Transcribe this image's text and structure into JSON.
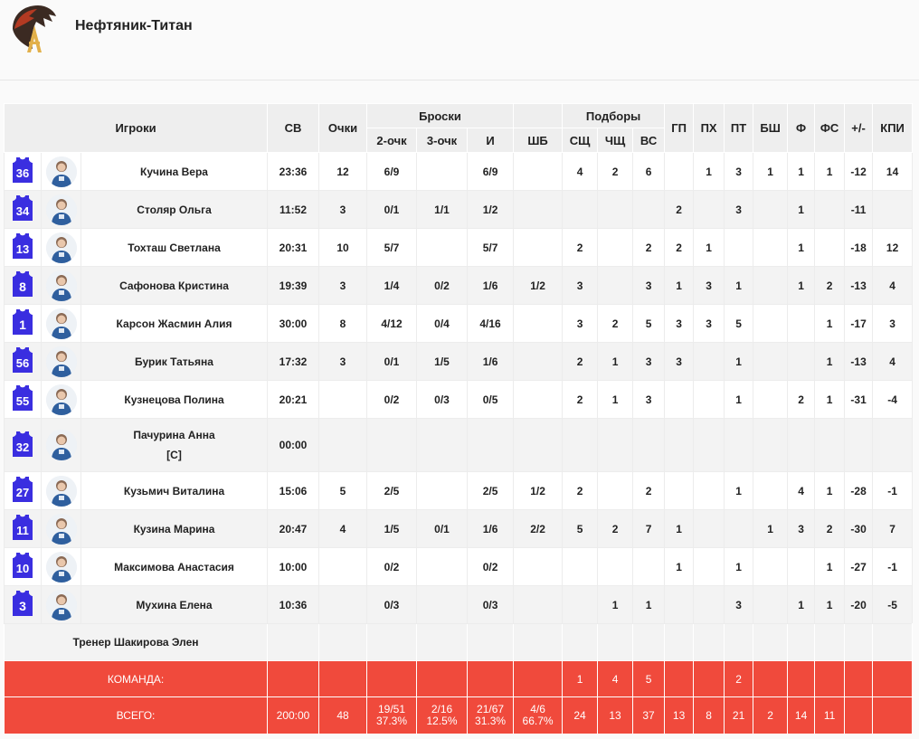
{
  "team": {
    "name": "Нефтяник-Титан"
  },
  "columns": {
    "players": "Игроки",
    "minutes": "СВ",
    "points": "Очки",
    "shots": "Броски",
    "two": "2-очк",
    "three": "3-очк",
    "fg": "И",
    "ft": "ШБ",
    "rebounds": "Подборы",
    "oreb": "СЩ",
    "dreb": "ЧЩ",
    "treb": "ВС",
    "ast": "ГП",
    "stl": "ПХ",
    "tov": "ПТ",
    "blk": "БШ",
    "pf": "Ф",
    "fd": "ФС",
    "pm": "+/-",
    "eff": "КПИ"
  },
  "players": [
    {
      "num": "36",
      "name": "Кучина Вера",
      "min": "23:36",
      "pts": "12",
      "two": "6/9",
      "three": "",
      "fg": "6/9",
      "ft": "",
      "or": "4",
      "dr": "2",
      "tr": "6",
      "ast": "",
      "stl": "1",
      "tov": "3",
      "blk": "1",
      "pf": "1",
      "fd": "1",
      "pm": "-12",
      "eff": "14"
    },
    {
      "num": "34",
      "name": "Столяр Ольга",
      "min": "11:52",
      "pts": "3",
      "two": "0/1",
      "three": "1/1",
      "fg": "1/2",
      "ft": "",
      "or": "",
      "dr": "",
      "tr": "",
      "ast": "2",
      "stl": "",
      "tov": "3",
      "blk": "",
      "pf": "1",
      "fd": "",
      "pm": "-11",
      "eff": ""
    },
    {
      "num": "13",
      "name": "Тохташ Светлана",
      "min": "20:31",
      "pts": "10",
      "two": "5/7",
      "three": "",
      "fg": "5/7",
      "ft": "",
      "or": "2",
      "dr": "",
      "tr": "2",
      "ast": "2",
      "stl": "1",
      "tov": "",
      "blk": "",
      "pf": "1",
      "fd": "",
      "pm": "-18",
      "eff": "12"
    },
    {
      "num": "8",
      "name": "Сафонова Кристина",
      "min": "19:39",
      "pts": "3",
      "two": "1/4",
      "three": "0/2",
      "fg": "1/6",
      "ft": "1/2",
      "or": "3",
      "dr": "",
      "tr": "3",
      "ast": "1",
      "stl": "3",
      "tov": "1",
      "blk": "",
      "pf": "1",
      "fd": "2",
      "pm": "-13",
      "eff": "4"
    },
    {
      "num": "1",
      "name": "Карсон Жасмин Алия",
      "min": "30:00",
      "pts": "8",
      "two": "4/12",
      "three": "0/4",
      "fg": "4/16",
      "ft": "",
      "or": "3",
      "dr": "2",
      "tr": "5",
      "ast": "3",
      "stl": "3",
      "tov": "5",
      "blk": "",
      "pf": "",
      "fd": "1",
      "pm": "-17",
      "eff": "3"
    },
    {
      "num": "56",
      "name": "Бурик Татьяна",
      "min": "17:32",
      "pts": "3",
      "two": "0/1",
      "three": "1/5",
      "fg": "1/6",
      "ft": "",
      "or": "2",
      "dr": "1",
      "tr": "3",
      "ast": "3",
      "stl": "",
      "tov": "1",
      "blk": "",
      "pf": "",
      "fd": "1",
      "pm": "-13",
      "eff": "4"
    },
    {
      "num": "55",
      "name": "Кузнецова Полина",
      "min": "20:21",
      "pts": "",
      "two": "0/2",
      "three": "0/3",
      "fg": "0/5",
      "ft": "",
      "or": "2",
      "dr": "1",
      "tr": "3",
      "ast": "",
      "stl": "",
      "tov": "1",
      "blk": "",
      "pf": "2",
      "fd": "1",
      "pm": "-31",
      "eff": "-4"
    },
    {
      "num": "32",
      "name": "Пачурина Анна",
      "tag": "[C]",
      "min": "00:00",
      "pts": "",
      "two": "",
      "three": "",
      "fg": "",
      "ft": "",
      "or": "",
      "dr": "",
      "tr": "",
      "ast": "",
      "stl": "",
      "tov": "",
      "blk": "",
      "pf": "",
      "fd": "",
      "pm": "",
      "eff": ""
    },
    {
      "num": "27",
      "name": "Кузьмич Виталина",
      "min": "15:06",
      "pts": "5",
      "two": "2/5",
      "three": "",
      "fg": "2/5",
      "ft": "1/2",
      "or": "2",
      "dr": "",
      "tr": "2",
      "ast": "",
      "stl": "",
      "tov": "1",
      "blk": "",
      "pf": "4",
      "fd": "1",
      "pm": "-28",
      "eff": "-1"
    },
    {
      "num": "11",
      "name": "Кузина Марина",
      "min": "20:47",
      "pts": "4",
      "two": "1/5",
      "three": "0/1",
      "fg": "1/6",
      "ft": "2/2",
      "or": "5",
      "dr": "2",
      "tr": "7",
      "ast": "1",
      "stl": "",
      "tov": "",
      "blk": "1",
      "pf": "3",
      "fd": "2",
      "pm": "-30",
      "eff": "7"
    },
    {
      "num": "10",
      "name": "Максимова Анастасия",
      "min": "10:00",
      "pts": "",
      "two": "0/2",
      "three": "",
      "fg": "0/2",
      "ft": "",
      "or": "",
      "dr": "",
      "tr": "",
      "ast": "1",
      "stl": "",
      "tov": "1",
      "blk": "",
      "pf": "",
      "fd": "1",
      "pm": "-27",
      "eff": "-1"
    },
    {
      "num": "3",
      "name": "Мухина Елена",
      "min": "10:36",
      "pts": "",
      "two": "0/3",
      "three": "",
      "fg": "0/3",
      "ft": "",
      "or": "",
      "dr": "1",
      "tr": "1",
      "ast": "",
      "stl": "",
      "tov": "3",
      "blk": "",
      "pf": "1",
      "fd": "1",
      "pm": "-20",
      "eff": "-5"
    }
  ],
  "coach": "Тренер Шакирова Элен",
  "team_row": {
    "label": "КОМАНДА:",
    "or": "1",
    "dr": "4",
    "tr": "5",
    "tov": "2"
  },
  "totals": {
    "label": "ВСЕГО:",
    "min": "200:00",
    "pts": "48",
    "two": "19/51",
    "two_pct": "37.3%",
    "three": "2/16",
    "three_pct": "12.5%",
    "fg": "21/67",
    "fg_pct": "31.3%",
    "ft": "4/6",
    "ft_pct": "66.7%",
    "or": "24",
    "dr": "13",
    "tr": "37",
    "ast": "13",
    "stl": "8",
    "tov": "21",
    "blk": "2",
    "pf": "14",
    "fd": "11"
  },
  "colors": {
    "accent": "#f04a3c",
    "jersey": "#3a2ee0"
  }
}
